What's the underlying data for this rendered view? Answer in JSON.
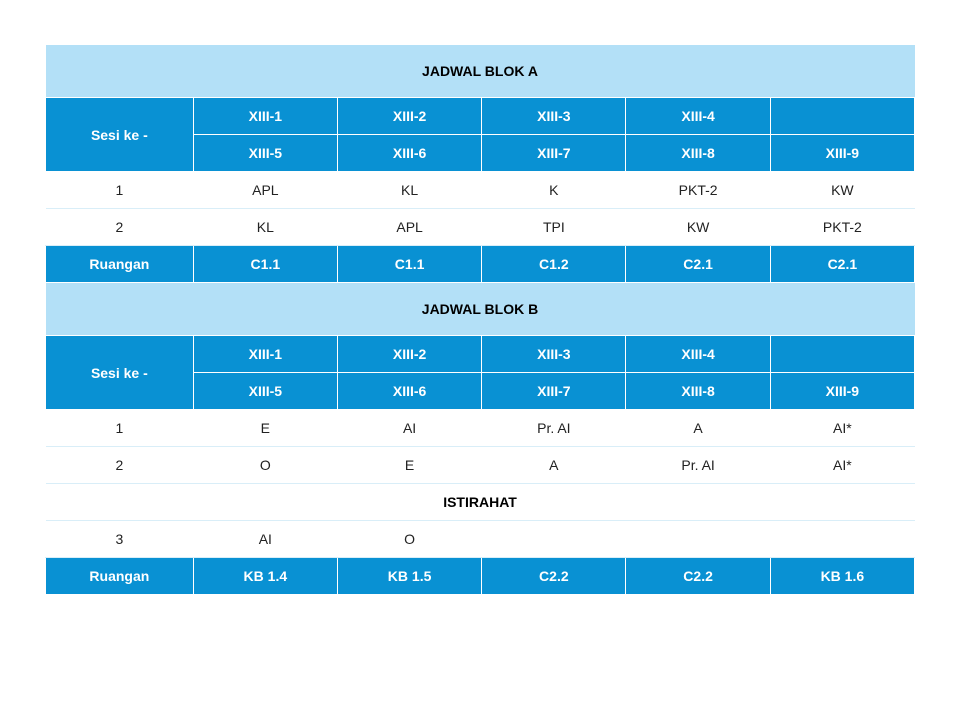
{
  "colors": {
    "title_bg": "#b3e0f7",
    "header_bg": "#0991d3",
    "header_fg": "#ffffff",
    "data_bg": "#ffffff",
    "data_fg": "#222222",
    "border_light": "#d9eef8"
  },
  "typography": {
    "font_family": "Segoe UI, Arial, sans-serif",
    "title_fontsize": 14,
    "cell_fontsize": 14,
    "header_weight": 700
  },
  "blockA": {
    "title": "JADWAL BLOK A",
    "sesi_label": "Sesi ke -",
    "header_row1": [
      "XIII-1",
      "XIII-2",
      "XIII-3",
      "XIII-4",
      ""
    ],
    "header_row2": [
      "XIII-5",
      "XIII-6",
      "XIII-7",
      "XIII-8",
      "XIII-9"
    ],
    "rows": [
      {
        "sesi": "1",
        "cells": [
          "APL",
          "KL",
          "K",
          "PKT-2",
          "KW"
        ]
      },
      {
        "sesi": "2",
        "cells": [
          "KL",
          "APL",
          "TPI",
          "KW",
          "PKT-2"
        ]
      }
    ],
    "ruangan_label": "Ruangan",
    "ruangan": [
      "C1.1",
      "C1.1",
      "C1.2",
      "C2.1",
      "C2.1"
    ]
  },
  "blockB": {
    "title": "JADWAL BLOK B",
    "sesi_label": "Sesi ke -",
    "header_row1": [
      "XIII-1",
      "XIII-2",
      "XIII-3",
      "XIII-4",
      ""
    ],
    "header_row2": [
      "XIII-5",
      "XIII-6",
      "XIII-7",
      "XIII-8",
      "XIII-9"
    ],
    "rows_before": [
      {
        "sesi": "1",
        "cells": [
          "E",
          "AI",
          "Pr. AI",
          "A",
          "AI*"
        ]
      },
      {
        "sesi": "2",
        "cells": [
          "O",
          "E",
          "A",
          "Pr. AI",
          "AI*"
        ]
      }
    ],
    "break_label": "ISTIRAHAT",
    "rows_after": [
      {
        "sesi": "3",
        "cells": [
          "AI",
          "O",
          "",
          "",
          ""
        ]
      }
    ],
    "ruangan_label": "Ruangan",
    "ruangan": [
      "KB 1.4",
      "KB 1.5",
      "C2.2",
      "C2.2",
      "KB 1.6"
    ]
  }
}
